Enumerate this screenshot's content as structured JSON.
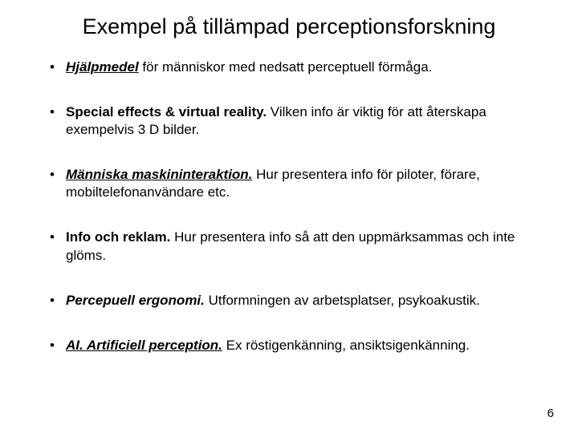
{
  "title": "Exempel på tillämpad perceptionsforskning",
  "bullets": [
    {
      "lead_text": "Hjälpmedel",
      "lead_style": "bold-italic underline",
      "rest": " för människor med nedsatt perceptuell förmåga."
    },
    {
      "lead_text": "Special effects & virtual reality.",
      "lead_style": "bold",
      "rest": " Vilken info är viktig för att återskapa exempelvis 3 D bilder."
    },
    {
      "lead_text": "Människa maskininteraktion.",
      "lead_style": "bold-italic underline",
      "rest": " Hur presentera info för piloter, förare, mobiltelefonanvändare etc."
    },
    {
      "lead_text": "Info och reklam.",
      "lead_style": "bold",
      "rest": " Hur presentera info så att den uppmärksammas och inte glöms."
    },
    {
      "lead_text": "Percepuell ergonomi.",
      "lead_style": "bold-italic",
      "rest": " Utformningen av arbetsplatser, psykoakustik."
    },
    {
      "lead_text": "AI. Artificiell perception.",
      "lead_style": "bold-italic underline",
      "rest": " Ex röstigenkänning, ansiktsigenkänning."
    }
  ],
  "page_number": "6",
  "colors": {
    "background": "#ffffff",
    "text": "#000000"
  },
  "typography": {
    "title_fontsize": 27,
    "body_fontsize": 17,
    "pagenum_fontsize": 15,
    "font_family": "Arial"
  }
}
